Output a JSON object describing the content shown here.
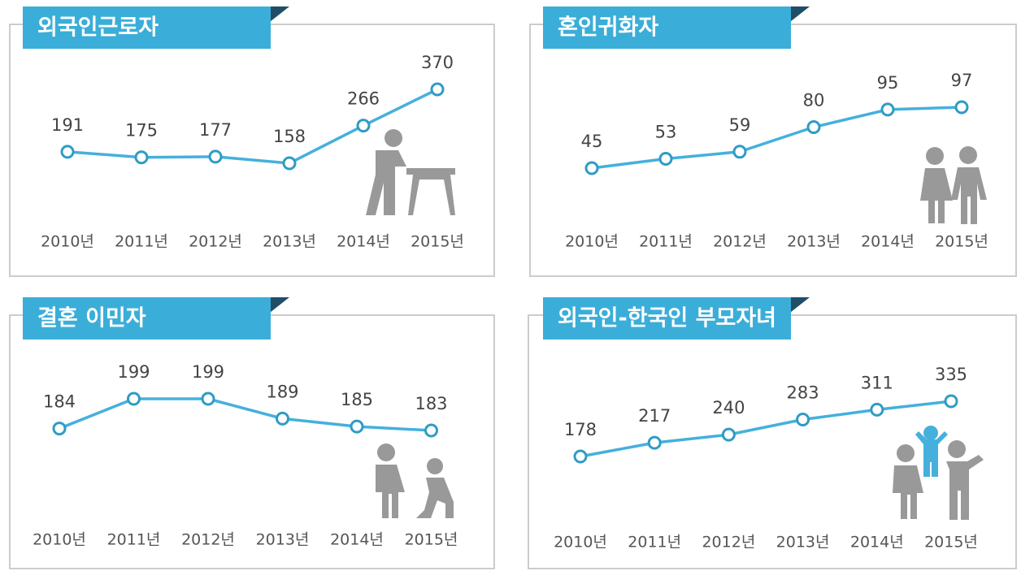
{
  "chart_data": [
    {
      "type": "line",
      "title": "외국인근로자",
      "categories": [
        "2010년",
        "2011년",
        "2012년",
        "2013년",
        "2014년",
        "2015년"
      ],
      "values": [
        191,
        175,
        177,
        158,
        266,
        370
      ],
      "color": "#45b0dc"
    },
    {
      "type": "line",
      "title": "혼인귀화자",
      "categories": [
        "2010년",
        "2011년",
        "2012년",
        "2013년",
        "2014년",
        "2015년"
      ],
      "values": [
        45,
        53,
        59,
        80,
        95,
        97
      ],
      "color": "#45b0dc"
    },
    {
      "type": "line",
      "title": "결혼 이민자",
      "categories": [
        "2010년",
        "2011년",
        "2012년",
        "2013년",
        "2014년",
        "2015년"
      ],
      "values": [
        184,
        199,
        199,
        189,
        185,
        183
      ],
      "color": "#45b0dc"
    },
    {
      "type": "line",
      "title": "외국인-한국인 부모자녀",
      "categories": [
        "2010년",
        "2011년",
        "2012년",
        "2013년",
        "2014년",
        "2015년"
      ],
      "values": [
        178,
        217,
        240,
        283,
        311,
        335
      ],
      "color": "#45b0dc"
    }
  ]
}
